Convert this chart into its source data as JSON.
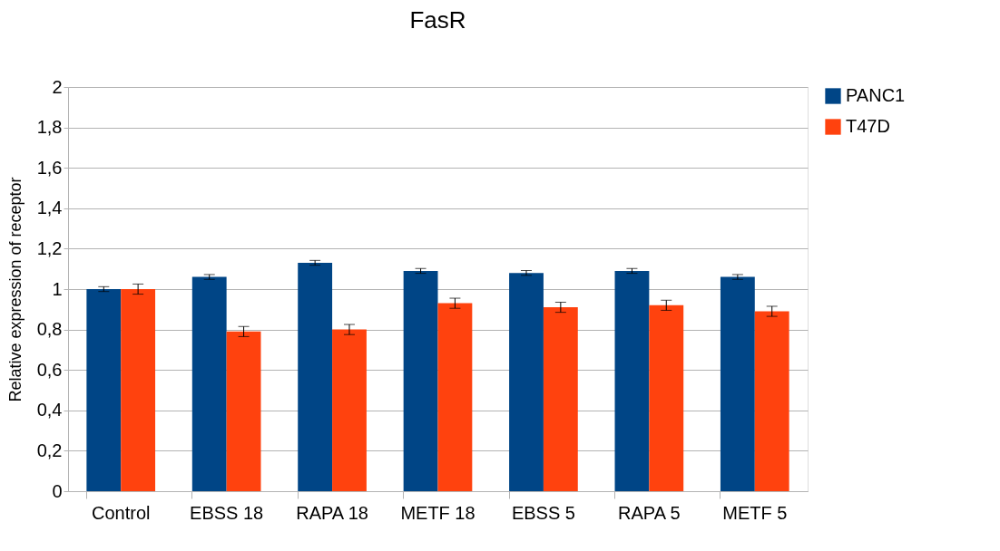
{
  "chart_data": {
    "type": "bar",
    "title": "FasR",
    "ylabel": "Relative expression of receptor",
    "categories": [
      "Control",
      "EBSS 18",
      "RAPA 18",
      "METF 18",
      "EBSS 5",
      "RAPA 5",
      "METF 5"
    ],
    "series": [
      {
        "name": "PANC1",
        "color": "#004586",
        "values": [
          1.0,
          1.06,
          1.13,
          1.09,
          1.08,
          1.09,
          1.06
        ],
        "errors": [
          0.012,
          0.012,
          0.012,
          0.012,
          0.012,
          0.012,
          0.012
        ]
      },
      {
        "name": "T47D",
        "color": "#ff420e",
        "values": [
          1.0,
          0.79,
          0.8,
          0.93,
          0.91,
          0.92,
          0.89
        ],
        "errors": [
          0.025,
          0.025,
          0.025,
          0.025,
          0.025,
          0.025,
          0.025
        ]
      }
    ],
    "ylim": [
      0,
      2
    ],
    "yticks": [
      0,
      {
        "value": 0.2,
        "label": "0,2"
      },
      {
        "value": 0.4,
        "label": "0,4"
      },
      {
        "value": 0.6,
        "label": "0,6"
      },
      {
        "value": 0.8,
        "label": "0,8"
      },
      1,
      {
        "value": 1.2,
        "label": "1,2"
      },
      {
        "value": 1.4,
        "label": "1,4"
      },
      {
        "value": 1.6,
        "label": "1,6"
      },
      {
        "value": 1.8,
        "label": "1,8"
      },
      2
    ],
    "grid": "y",
    "legend": "right"
  }
}
